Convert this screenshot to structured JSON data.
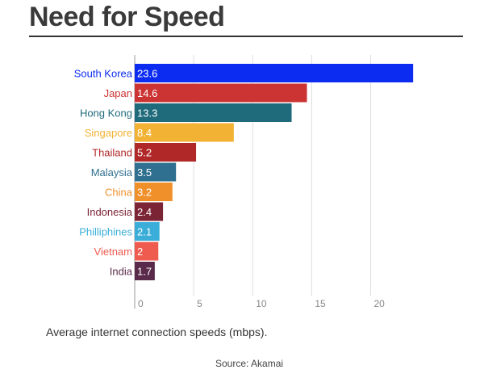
{
  "header": {
    "title": "Need for Speed"
  },
  "chart_data": {
    "type": "bar",
    "orientation": "horizontal",
    "title": "Need for Speed",
    "subtitle": "Average internet connection speeds (mbps).",
    "source": "Source: Akamai",
    "xlabel": "",
    "ylabel": "",
    "xlim": [
      0,
      24
    ],
    "grid": true,
    "legend": "none",
    "ticks": [
      0,
      5,
      10,
      15,
      20
    ],
    "tick_labels": [
      "0",
      "5",
      "10",
      "15",
      "20"
    ],
    "categories": [
      "South Korea",
      "Japan",
      "Hong Kong",
      "Singapore",
      "Thailand",
      "Malaysia",
      "China",
      "Indonesia",
      "Philliphines",
      "Vietnam",
      "India"
    ],
    "values": [
      23.6,
      14.6,
      13.3,
      8.4,
      5.2,
      3.5,
      3.2,
      2.4,
      2.1,
      2,
      1.7
    ],
    "value_labels": [
      "23.6",
      "14.6",
      "13.3",
      "8.4",
      "5.2",
      "3.5",
      "3.2",
      "2.4",
      "2.1",
      "2",
      "1.7"
    ],
    "colors": [
      "#0d2cf2",
      "#cc3333",
      "#1f6a7b",
      "#f2b233",
      "#b02828",
      "#2f6f8f",
      "#f0902a",
      "#7a2435",
      "#3aaed8",
      "#ef5b4f",
      "#5a2a4a"
    ],
    "grid_color": "#dddddd",
    "axis_color": "#999999"
  }
}
